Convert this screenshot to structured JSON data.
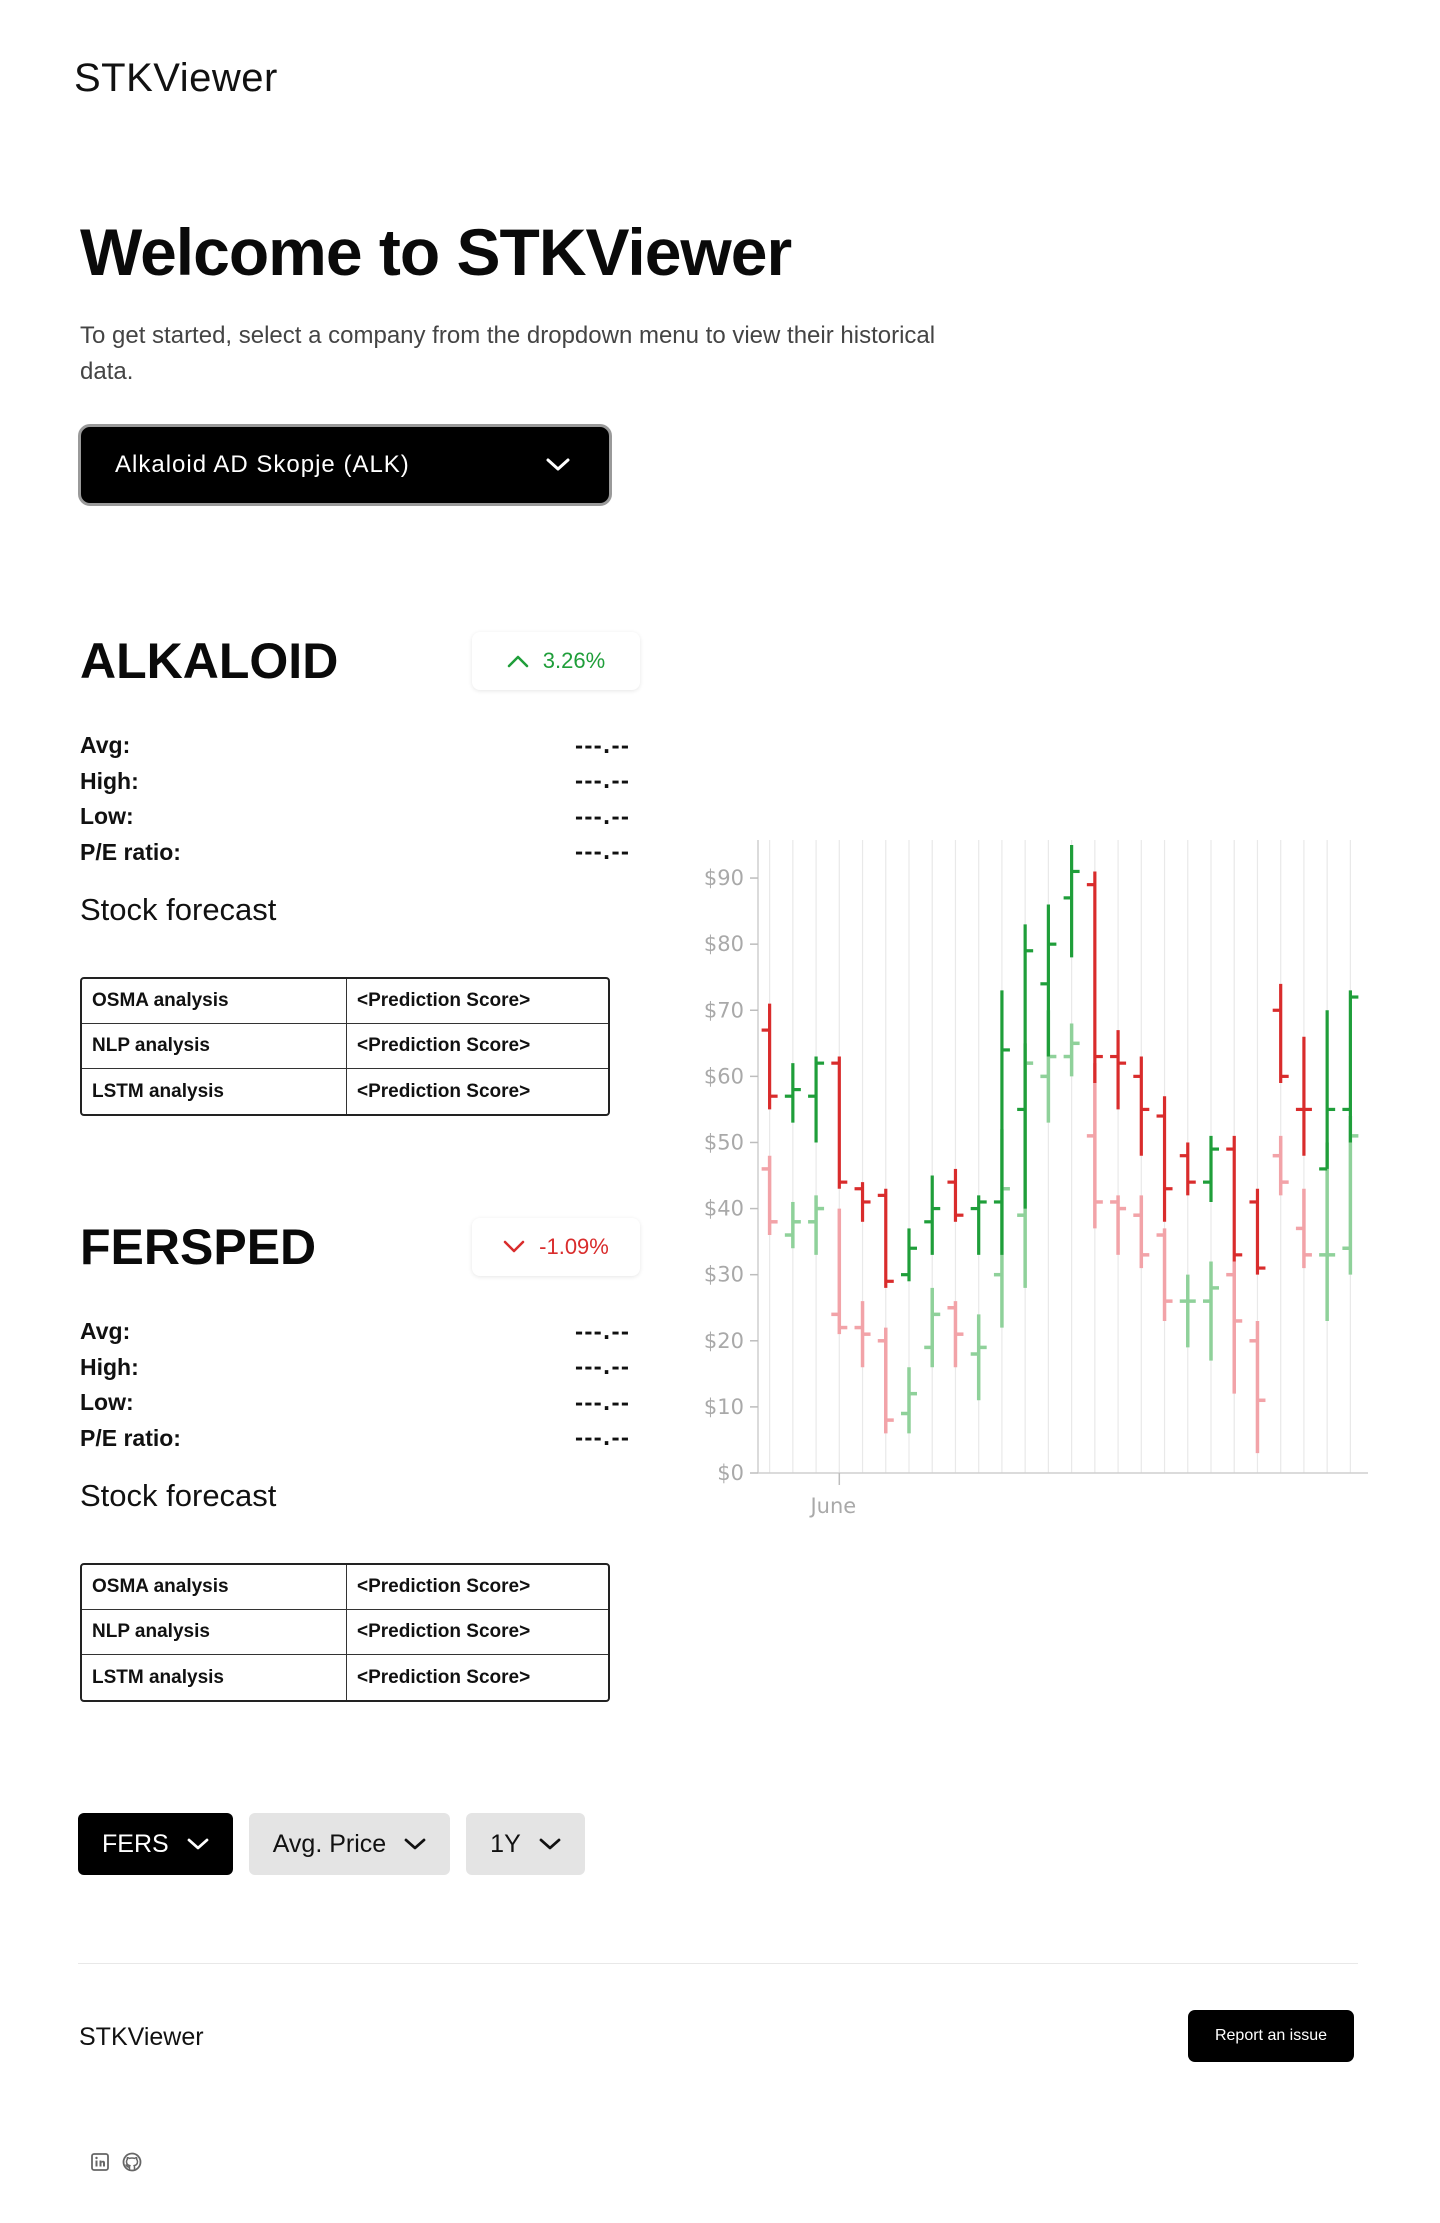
{
  "app": {
    "brand": "STKViewer"
  },
  "hero": {
    "title": "Welcome to STKViewer",
    "subtitle": "To get started, select a company from the dropdown menu to view their historical data."
  },
  "company_select": {
    "selected": "Alkaloid AD Skopje (ALK)"
  },
  "stocks": [
    {
      "name": "ALKALOID",
      "change": "3.26%",
      "direction": "up",
      "stats": [
        {
          "label": "Avg:",
          "value": "---.--"
        },
        {
          "label": "High:",
          "value": "---.--"
        },
        {
          "label": "Low:",
          "value": "---.--"
        },
        {
          "label": "P/E ratio:",
          "value": "---.--"
        }
      ],
      "forecast_title": "Stock forecast",
      "forecast": [
        {
          "method": "OSMA analysis",
          "score": "<Prediction Score>"
        },
        {
          "method": "NLP analysis",
          "score": "<Prediction Score>"
        },
        {
          "method": "LSTM analysis",
          "score": "<Prediction Score>"
        }
      ]
    },
    {
      "name": "FERSPED",
      "change": "-1.09%",
      "direction": "down",
      "stats": [
        {
          "label": "Avg:",
          "value": "---.--"
        },
        {
          "label": "High:",
          "value": "---.--"
        },
        {
          "label": "Low:",
          "value": "---.--"
        },
        {
          "label": "P/E ratio:",
          "value": "---.--"
        }
      ],
      "forecast_title": "Stock forecast",
      "forecast": [
        {
          "method": "OSMA analysis",
          "score": "<Prediction Score>"
        },
        {
          "method": "NLP analysis",
          "score": "<Prediction Score>"
        },
        {
          "method": "LSTM analysis",
          "score": "<Prediction Score>"
        }
      ]
    }
  ],
  "colors": {
    "up": "#1f9e3a",
    "down": "#d92c2c",
    "up_light": "#8fd19a",
    "down_light": "#f2a3a8"
  },
  "chart_data": {
    "type": "ohlc",
    "ylim": [
      0,
      95
    ],
    "yticks": [
      0,
      10,
      20,
      30,
      40,
      50,
      60,
      70,
      80,
      90
    ],
    "ytick_labels": [
      "$0",
      "$10",
      "$20",
      "$30",
      "$40",
      "$50",
      "$60",
      "$70",
      "$80",
      "$90"
    ],
    "xtick_labels": [
      "June"
    ],
    "xtick_index": 3,
    "grid": "vertical",
    "series": [
      {
        "bars": [
          {
            "open": 67,
            "high": 71,
            "low": 55,
            "close": 57,
            "dir": "down"
          },
          {
            "open": 57,
            "high": 62,
            "low": 53,
            "close": 58,
            "dir": "up"
          },
          {
            "open": 57,
            "high": 63,
            "low": 50,
            "close": 62,
            "dir": "up"
          },
          {
            "open": 62,
            "high": 63,
            "low": 43,
            "close": 44,
            "dir": "down"
          },
          {
            "open": 43,
            "high": 44,
            "low": 38,
            "close": 41,
            "dir": "down"
          },
          {
            "open": 42,
            "high": 43,
            "low": 28,
            "close": 29,
            "dir": "down"
          },
          {
            "open": 30,
            "high": 37,
            "low": 29,
            "close": 34,
            "dir": "up"
          },
          {
            "open": 38,
            "high": 45,
            "low": 33,
            "close": 40,
            "dir": "up"
          },
          {
            "open": 44,
            "high": 46,
            "low": 38,
            "close": 39,
            "dir": "down"
          },
          {
            "open": 40,
            "high": 42,
            "low": 33,
            "close": 41,
            "dir": "up"
          },
          {
            "open": 41,
            "high": 73,
            "low": 33,
            "close": 64,
            "dir": "up"
          },
          {
            "open": 55,
            "high": 83,
            "low": 40,
            "close": 79,
            "dir": "up"
          },
          {
            "open": 74,
            "high": 86,
            "low": 63,
            "close": 80,
            "dir": "up"
          },
          {
            "open": 87,
            "high": 95,
            "low": 78,
            "close": 91,
            "dir": "up"
          },
          {
            "open": 89,
            "high": 91,
            "low": 59,
            "close": 63,
            "dir": "down"
          },
          {
            "open": 63,
            "high": 67,
            "low": 55,
            "close": 62,
            "dir": "down"
          },
          {
            "open": 60,
            "high": 63,
            "low": 48,
            "close": 55,
            "dir": "down"
          },
          {
            "open": 54,
            "high": 57,
            "low": 38,
            "close": 43,
            "dir": "down"
          },
          {
            "open": 48,
            "high": 50,
            "low": 42,
            "close": 44,
            "dir": "down"
          },
          {
            "open": 44,
            "high": 51,
            "low": 41,
            "close": 49,
            "dir": "up"
          },
          {
            "open": 49,
            "high": 51,
            "low": 32,
            "close": 33,
            "dir": "down"
          },
          {
            "open": 41,
            "high": 43,
            "low": 30,
            "close": 31,
            "dir": "down"
          },
          {
            "open": 70,
            "high": 74,
            "low": 59,
            "close": 60,
            "dir": "down"
          },
          {
            "open": 55,
            "high": 66,
            "low": 48,
            "close": 55,
            "dir": "down"
          },
          {
            "open": 46,
            "high": 70,
            "low": 46,
            "close": 55,
            "dir": "up"
          },
          {
            "open": 55,
            "high": 73,
            "low": 50,
            "close": 72,
            "dir": "up"
          }
        ]
      },
      {
        "bars": [
          {
            "open": 46,
            "high": 48,
            "low": 36,
            "close": 38,
            "dir": "down"
          },
          {
            "open": 36,
            "high": 41,
            "low": 34,
            "close": 38,
            "dir": "up"
          },
          {
            "open": 38,
            "high": 42,
            "low": 33,
            "close": 40,
            "dir": "up"
          },
          {
            "open": 24,
            "high": 40,
            "low": 21,
            "close": 22,
            "dir": "down"
          },
          {
            "open": 22,
            "high": 26,
            "low": 16,
            "close": 21,
            "dir": "down"
          },
          {
            "open": 20,
            "high": 22,
            "low": 6,
            "close": 8,
            "dir": "down"
          },
          {
            "open": 9,
            "high": 16,
            "low": 6,
            "close": 12,
            "dir": "up"
          },
          {
            "open": 19,
            "high": 28,
            "low": 16,
            "close": 24,
            "dir": "up"
          },
          {
            "open": 25,
            "high": 26,
            "low": 16,
            "close": 21,
            "dir": "down"
          },
          {
            "open": 18,
            "high": 24,
            "low": 11,
            "close": 19,
            "dir": "up"
          },
          {
            "open": 30,
            "high": 52,
            "low": 22,
            "close": 43,
            "dir": "up"
          },
          {
            "open": 39,
            "high": 65,
            "low": 28,
            "close": 62,
            "dir": "up"
          },
          {
            "open": 60,
            "high": 70,
            "low": 53,
            "close": 63,
            "dir": "up"
          },
          {
            "open": 63,
            "high": 68,
            "low": 60,
            "close": 65,
            "dir": "up"
          },
          {
            "open": 51,
            "high": 62,
            "low": 37,
            "close": 41,
            "dir": "down"
          },
          {
            "open": 41,
            "high": 42,
            "low": 33,
            "close": 40,
            "dir": "down"
          },
          {
            "open": 39,
            "high": 42,
            "low": 31,
            "close": 33,
            "dir": "down"
          },
          {
            "open": 36,
            "high": 37,
            "low": 23,
            "close": 26,
            "dir": "down"
          },
          {
            "open": 26,
            "high": 30,
            "low": 19,
            "close": 26,
            "dir": "up"
          },
          {
            "open": 26,
            "high": 32,
            "low": 17,
            "close": 28,
            "dir": "up"
          },
          {
            "open": 30,
            "high": 32,
            "low": 12,
            "close": 23,
            "dir": "down"
          },
          {
            "open": 20,
            "high": 23,
            "low": 3,
            "close": 11,
            "dir": "down"
          },
          {
            "open": 48,
            "high": 51,
            "low": 42,
            "close": 44,
            "dir": "down"
          },
          {
            "open": 37,
            "high": 43,
            "low": 31,
            "close": 33,
            "dir": "down"
          },
          {
            "open": 33,
            "high": 50,
            "low": 23,
            "close": 33,
            "dir": "up"
          },
          {
            "open": 34,
            "high": 54,
            "low": 30,
            "close": 51,
            "dir": "up"
          }
        ]
      }
    ]
  },
  "controls": [
    {
      "label": "FERS",
      "style": "dark"
    },
    {
      "label": "Avg. Price",
      "style": "light"
    },
    {
      "label": "1Y",
      "style": "light"
    }
  ],
  "footer": {
    "brand": "STKViewer",
    "report_label": "Report an issue",
    "socials": [
      "linkedin-icon",
      "github-icon"
    ]
  }
}
